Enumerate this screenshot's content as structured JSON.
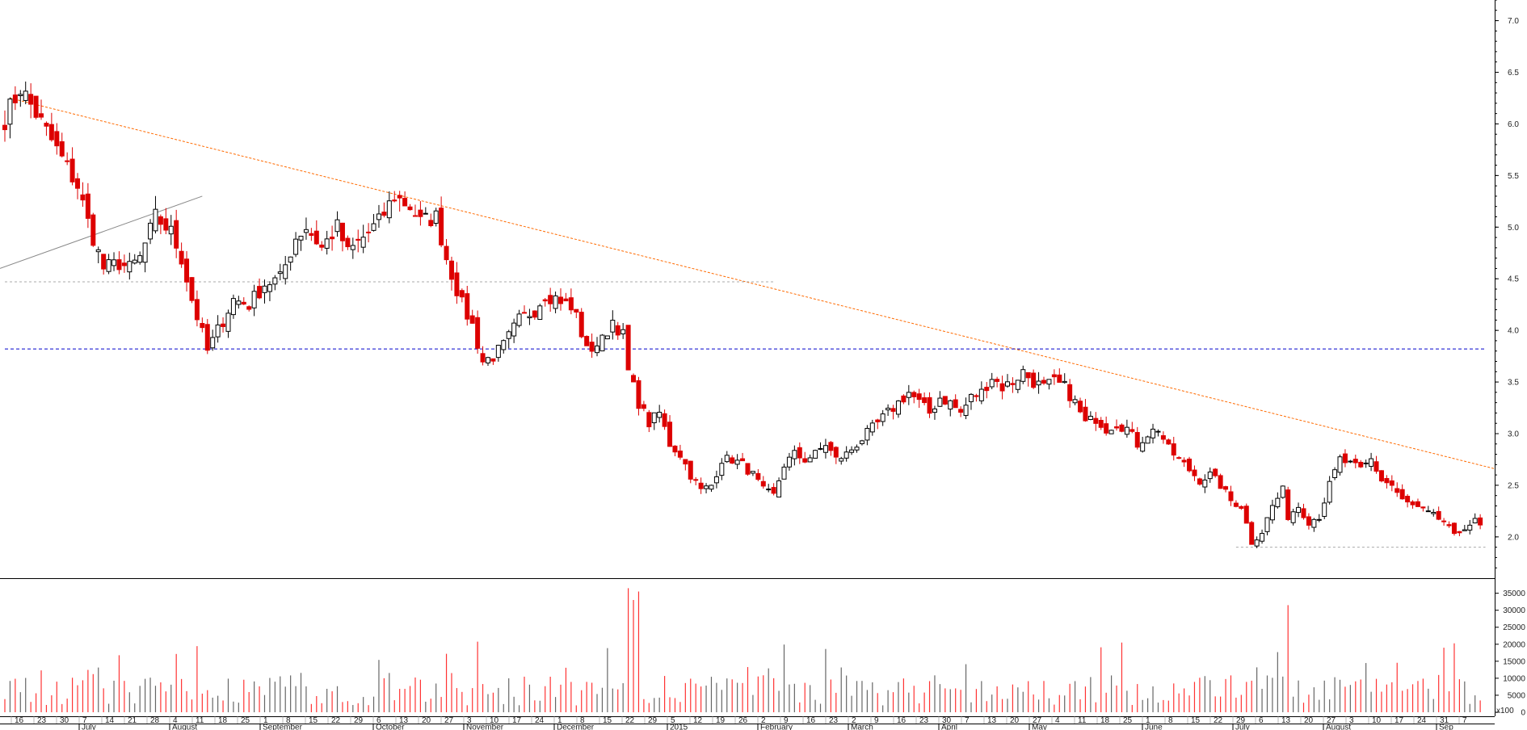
{
  "chart_data": {
    "type": "candlestick",
    "title": "",
    "price_axis": {
      "ylim": [
        1.6,
        7.2
      ],
      "ticks": [
        2.0,
        2.5,
        3.0,
        3.5,
        4.0,
        4.5,
        5.0,
        5.5,
        6.0,
        6.5,
        7.0
      ]
    },
    "volume_axis": {
      "ylim": [
        0,
        38000
      ],
      "ticks": [
        0,
        5000,
        10000,
        15000,
        20000,
        25000,
        30000,
        35000
      ],
      "unit_label": "x100"
    },
    "date_labels": [
      "16",
      "23",
      "30",
      "7",
      "14",
      "21",
      "28",
      "4",
      "11",
      "18",
      "25",
      "1",
      "8",
      "15",
      "22",
      "29",
      "6",
      "13",
      "20",
      "27",
      "3",
      "10",
      "17",
      "24",
      "1",
      "8",
      "15",
      "22",
      "29",
      "5",
      "12",
      "19",
      "26",
      "2",
      "9",
      "16",
      "23",
      "2",
      "9",
      "16",
      "23",
      "30",
      "7",
      "13",
      "20",
      "27",
      "4",
      "11",
      "18",
      "25",
      "1",
      "8",
      "15",
      "22",
      "29",
      "6",
      "13",
      "20",
      "27",
      "3",
      "10",
      "17",
      "24",
      "31",
      "7"
    ],
    "month_labels": [
      "July",
      "August",
      "September",
      "October",
      "November",
      "December",
      "2015",
      "February",
      "March",
      "April",
      "May",
      "June",
      "July",
      "August",
      "Sep"
    ],
    "month_label_index": [
      3,
      7,
      11,
      16,
      20,
      24,
      29,
      33,
      37,
      41,
      45,
      50,
      54,
      58,
      63
    ],
    "series": [
      {
        "name": "price",
        "anchors_close": [
          [
            0,
            6.05
          ],
          [
            2,
            6.25
          ],
          [
            3,
            6.35
          ],
          [
            6,
            6.1
          ],
          [
            10,
            5.75
          ],
          [
            14,
            5.4
          ],
          [
            16,
            5.05
          ],
          [
            19,
            4.6
          ],
          [
            22,
            4.65
          ],
          [
            24,
            4.6
          ],
          [
            26,
            4.7
          ],
          [
            29,
            5.1
          ],
          [
            32,
            4.95
          ],
          [
            34,
            4.7
          ],
          [
            36,
            4.3
          ],
          [
            39,
            3.8
          ],
          [
            41,
            4.0
          ],
          [
            44,
            4.3
          ],
          [
            47,
            4.25
          ],
          [
            50,
            4.45
          ],
          [
            53,
            4.5
          ],
          [
            56,
            4.9
          ],
          [
            58,
            5.0
          ],
          [
            61,
            4.8
          ],
          [
            64,
            5.0
          ],
          [
            66,
            4.75
          ],
          [
            69,
            4.9
          ],
          [
            72,
            5.05
          ],
          [
            75,
            5.3
          ],
          [
            78,
            5.2
          ],
          [
            80,
            5.05
          ],
          [
            83,
            5.1
          ],
          [
            85,
            4.7
          ],
          [
            88,
            4.25
          ],
          [
            90,
            4.05
          ],
          [
            92,
            3.7
          ],
          [
            94,
            3.75
          ],
          [
            96,
            3.85
          ],
          [
            99,
            4.1
          ],
          [
            102,
            4.2
          ],
          [
            104,
            4.35
          ],
          [
            107,
            4.3
          ],
          [
            110,
            4.15
          ],
          [
            112,
            3.8
          ],
          [
            115,
            3.9
          ],
          [
            117,
            4.1
          ],
          [
            119,
            3.95
          ],
          [
            120,
            3.6
          ],
          [
            122,
            3.3
          ],
          [
            124,
            3.1
          ],
          [
            126,
            3.2
          ],
          [
            128,
            2.9
          ],
          [
            130,
            2.8
          ],
          [
            132,
            2.6
          ],
          [
            134,
            2.45
          ],
          [
            136,
            2.5
          ],
          [
            138,
            2.75
          ],
          [
            140,
            2.75
          ],
          [
            142,
            2.7
          ],
          [
            144,
            2.6
          ],
          [
            146,
            2.45
          ],
          [
            148,
            2.4
          ],
          [
            150,
            2.7
          ],
          [
            152,
            2.8
          ],
          [
            154,
            2.75
          ],
          [
            156,
            2.8
          ],
          [
            158,
            2.9
          ],
          [
            160,
            2.75
          ],
          [
            162,
            2.8
          ],
          [
            164,
            2.9
          ],
          [
            166,
            3.0
          ],
          [
            168,
            3.1
          ],
          [
            170,
            3.2
          ],
          [
            172,
            3.3
          ],
          [
            174,
            3.4
          ],
          [
            176,
            3.3
          ],
          [
            178,
            3.2
          ],
          [
            180,
            3.35
          ],
          [
            182,
            3.3
          ],
          [
            184,
            3.2
          ],
          [
            186,
            3.35
          ],
          [
            188,
            3.4
          ],
          [
            190,
            3.55
          ],
          [
            192,
            3.45
          ],
          [
            194,
            3.5
          ],
          [
            196,
            3.6
          ],
          [
            198,
            3.5
          ],
          [
            200,
            3.45
          ],
          [
            202,
            3.5
          ],
          [
            204,
            3.45
          ],
          [
            206,
            3.3
          ],
          [
            208,
            3.1
          ],
          [
            210,
            3.15
          ],
          [
            212,
            3.05
          ],
          [
            214,
            3.1
          ],
          [
            216,
            3.05
          ],
          [
            218,
            2.9
          ],
          [
            220,
            3.0
          ],
          [
            222,
            3.05
          ],
          [
            224,
            2.85
          ],
          [
            226,
            2.75
          ],
          [
            228,
            2.65
          ],
          [
            230,
            2.55
          ],
          [
            232,
            2.6
          ],
          [
            234,
            2.5
          ],
          [
            236,
            2.35
          ],
          [
            238,
            2.3
          ],
          [
            240,
            1.95
          ],
          [
            242,
            2.05
          ],
          [
            244,
            2.3
          ],
          [
            246,
            2.45
          ],
          [
            247,
            2.2
          ],
          [
            249,
            2.3
          ],
          [
            251,
            2.15
          ],
          [
            253,
            2.2
          ],
          [
            255,
            2.5
          ],
          [
            257,
            2.75
          ],
          [
            259,
            2.7
          ],
          [
            261,
            2.65
          ],
          [
            263,
            2.75
          ],
          [
            265,
            2.55
          ],
          [
            267,
            2.5
          ],
          [
            269,
            2.35
          ],
          [
            271,
            2.3
          ],
          [
            273,
            2.25
          ],
          [
            275,
            2.2
          ],
          [
            277,
            2.15
          ],
          [
            279,
            2.0
          ],
          [
            281,
            2.1
          ],
          [
            283,
            2.15
          ],
          [
            284,
            2.1
          ]
        ]
      },
      {
        "name": "volume",
        "range": [
          2000,
          37000
        ]
      }
    ],
    "reference_lines": [
      {
        "kind": "downtrend",
        "from": [
          1,
          6.25
        ],
        "to": [
          285,
          2.66
        ]
      },
      {
        "kind": "trendline",
        "from": [
          0,
          4.6
        ],
        "to": [
          38,
          5.3
        ]
      },
      {
        "kind": "horizontal",
        "y": 4.47,
        "from": 0,
        "to": 148
      },
      {
        "kind": "horizontal",
        "y": 3.82,
        "from": 0,
        "to": 285
      },
      {
        "kind": "horizontal",
        "y": 1.9,
        "from": 237,
        "to": 285
      }
    ],
    "colors": {
      "up": "#000000",
      "down": "#dd0000",
      "vol_up": "#666666",
      "vol_down": "#ff3333",
      "downtrend": "#ff6a00",
      "support": "#0000cc"
    },
    "grid": false,
    "legend": "none"
  }
}
